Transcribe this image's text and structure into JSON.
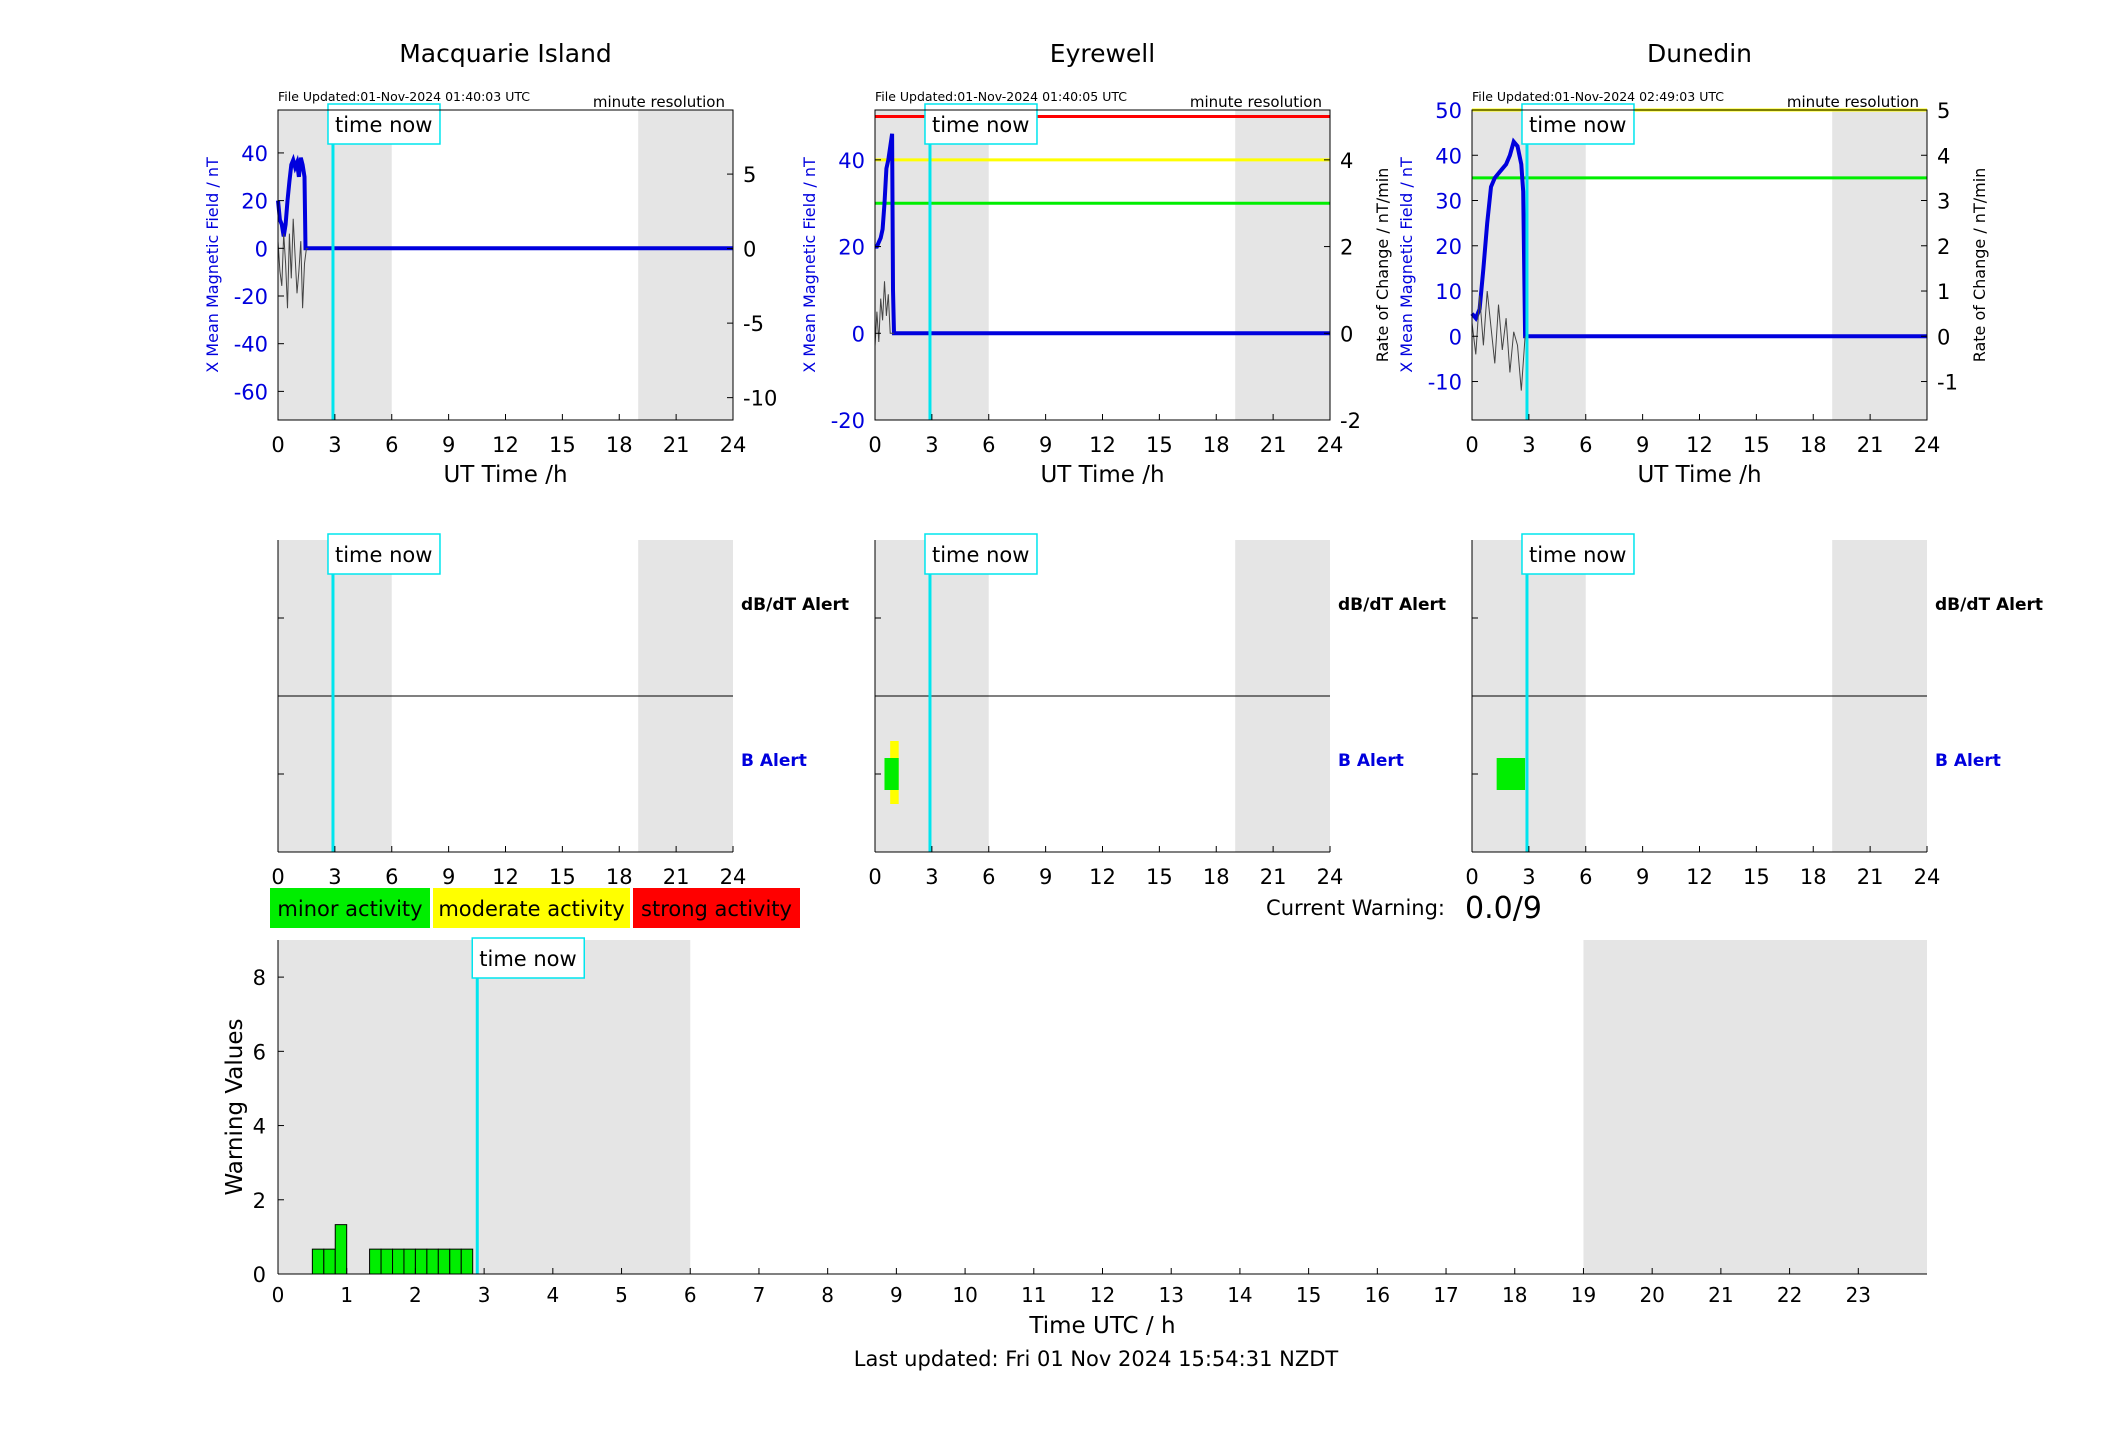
{
  "figure": {
    "last_updated": "Last updated: Fri 01 Nov 2024 15:54:31 NZDT",
    "current_warning_label": "Current Warning:",
    "current_warning_value": "0.0/9",
    "time_now_label": "time now",
    "legend": [
      {
        "label": "minor activity",
        "color": "#00ee00"
      },
      {
        "label": "moderate activity",
        "color": "#ffff00"
      },
      {
        "label": "strong activity",
        "color": "#ff0000"
      }
    ],
    "colors": {
      "field": "#0000dd",
      "rate": "#444444",
      "time_now": "#00e5ee",
      "night_shade": "#e5e5e5"
    }
  },
  "chart_data": [
    {
      "type": "line",
      "title": "Macquarie Island",
      "file_updated": "File Updated:01-Nov-2024 01:40:03 UTC",
      "resolution": "minute resolution",
      "xlabel": "UT Time /h",
      "ylabel": "X Mean Magnetic Field / nT",
      "ylabel_right": "",
      "xlim": [
        0,
        24
      ],
      "xticks": [
        "0",
        "3",
        "6",
        "9",
        "12",
        "15",
        "18",
        "21",
        "24"
      ],
      "ylim": [
        -72,
        58
      ],
      "yticks": [
        "-60",
        "-40",
        "-20",
        "0",
        "20",
        "40"
      ],
      "ylim_right": [
        -11.5,
        9.3
      ],
      "yticks_right": [
        "-10",
        "-5",
        "0",
        "5"
      ],
      "time_now_h": 2.9,
      "shade": [
        [
          0,
          6
        ],
        [
          19,
          24
        ]
      ],
      "thresholds": [],
      "series": [
        {
          "role": "field",
          "x": [
            0,
            0.1,
            0.2,
            0.3,
            0.4,
            0.5,
            0.6,
            0.7,
            0.8,
            0.9,
            1.0,
            1.1,
            1.2,
            1.3,
            1.4,
            1.45,
            1.5,
            2,
            24
          ],
          "y": [
            20,
            12,
            10,
            5,
            10,
            20,
            28,
            35,
            37,
            34,
            36,
            30,
            38,
            35,
            30,
            0,
            0,
            0,
            0
          ]
        },
        {
          "role": "rate",
          "x": [
            0,
            0.1,
            0.2,
            0.3,
            0.4,
            0.5,
            0.6,
            0.7,
            0.8,
            0.9,
            1.0,
            1.1,
            1.2,
            1.3,
            1.4,
            1.5,
            1.6
          ],
          "y": [
            0.5,
            -1.5,
            -2.5,
            1,
            -1,
            -4,
            1,
            -2,
            2,
            -0.5,
            -3,
            -1.5,
            0.5,
            -4,
            -1,
            0,
            0
          ]
        }
      ]
    },
    {
      "type": "line",
      "title": "Eyrewell",
      "file_updated": "File Updated:01-Nov-2024 01:40:05 UTC",
      "resolution": "minute resolution",
      "xlabel": "UT Time /h",
      "ylabel": "X Mean Magnetic Field / nT",
      "ylabel_right": "Rate of Change / nT/min",
      "xlim": [
        0,
        24
      ],
      "xticks": [
        "0",
        "3",
        "6",
        "9",
        "12",
        "15",
        "18",
        "21",
        "24"
      ],
      "ylim": [
        -20,
        51.5
      ],
      "yticks": [
        "-20",
        "0",
        "20",
        "40"
      ],
      "ylim_right": [
        -2,
        5.15
      ],
      "yticks_right": [
        "-2",
        "0",
        "2",
        "4"
      ],
      "time_now_h": 2.9,
      "shade": [
        [
          0,
          6
        ],
        [
          19,
          24
        ]
      ],
      "thresholds": [
        {
          "y": 50,
          "color": "#ff0000"
        },
        {
          "y": 40,
          "color": "#ffff00"
        },
        {
          "y": 30,
          "color": "#00ee00"
        }
      ],
      "series": [
        {
          "role": "field",
          "x": [
            0,
            0.1,
            0.2,
            0.3,
            0.4,
            0.5,
            0.6,
            0.7,
            0.8,
            0.9,
            0.95,
            1.0,
            1.05,
            24
          ],
          "y": [
            20,
            20,
            21,
            22,
            24,
            30,
            38,
            40,
            43,
            46,
            10,
            0,
            0,
            0
          ]
        },
        {
          "role": "rate",
          "x": [
            0,
            0.1,
            0.2,
            0.3,
            0.4,
            0.5,
            0.6,
            0.7,
            0.8,
            0.9,
            1.0
          ],
          "y": [
            -0.3,
            0.5,
            -0.2,
            0.8,
            0.3,
            1.2,
            0.4,
            0.9,
            0,
            0,
            0
          ]
        }
      ]
    },
    {
      "type": "line",
      "title": "Dunedin",
      "file_updated": "File Updated:01-Nov-2024 02:49:03 UTC",
      "resolution": "minute resolution",
      "xlabel": "UT Time /h",
      "ylabel": "X Mean Magnetic Field / nT",
      "ylabel_right": "Rate of Change / nT/min",
      "xlim": [
        0,
        24
      ],
      "xticks": [
        "0",
        "3",
        "6",
        "9",
        "12",
        "15",
        "18",
        "21",
        "24"
      ],
      "ylim": [
        -18.5,
        50
      ],
      "yticks": [
        "-10",
        "0",
        "10",
        "20",
        "30",
        "40",
        "50"
      ],
      "ylim_right": [
        -1.85,
        5
      ],
      "yticks_right": [
        "-1",
        "0",
        "1",
        "2",
        "3",
        "4",
        "5"
      ],
      "time_now_h": 2.9,
      "shade": [
        [
          0,
          6
        ],
        [
          19,
          24
        ]
      ],
      "thresholds": [
        {
          "y": 50,
          "color": "#ffff00"
        },
        {
          "y": 35,
          "color": "#00ee00"
        }
      ],
      "series": [
        {
          "role": "field",
          "x": [
            0,
            0.2,
            0.4,
            0.6,
            0.8,
            1.0,
            1.2,
            1.4,
            1.6,
            1.8,
            2.0,
            2.2,
            2.4,
            2.6,
            2.7,
            2.8,
            2.85,
            24
          ],
          "y": [
            5,
            4,
            6,
            15,
            25,
            33,
            35,
            36,
            37,
            38,
            40,
            43,
            42,
            38,
            32,
            0,
            0,
            0
          ]
        },
        {
          "role": "rate",
          "x": [
            0,
            0.2,
            0.4,
            0.6,
            0.8,
            1.0,
            1.2,
            1.4,
            1.6,
            1.8,
            2.0,
            2.2,
            2.4,
            2.6,
            2.8
          ],
          "y": [
            0.3,
            -0.4,
            0.9,
            -0.2,
            1.0,
            0.2,
            -0.6,
            0.7,
            -0.3,
            0.4,
            -0.8,
            0.1,
            -0.2,
            -1.2,
            0
          ]
        }
      ]
    },
    {
      "type": "heatmap",
      "title": "",
      "rows": [
        "dB/dT Alert",
        "B Alert"
      ],
      "xlim": [
        0,
        24
      ],
      "xticks": [
        "0",
        "3",
        "6",
        "9",
        "12",
        "15",
        "18",
        "21",
        "24"
      ],
      "time_now_h": 2.9,
      "shade": [
        [
          0,
          6
        ],
        [
          19,
          24
        ]
      ],
      "blocks": []
    },
    {
      "type": "heatmap",
      "title": "",
      "rows": [
        "dB/dT Alert",
        "B Alert"
      ],
      "xlim": [
        0,
        24
      ],
      "xticks": [
        "0",
        "3",
        "6",
        "9",
        "12",
        "15",
        "18",
        "21",
        "24"
      ],
      "time_now_h": 2.9,
      "shade": [
        [
          0,
          6
        ],
        [
          19,
          24
        ]
      ],
      "blocks": [
        {
          "row": "B Alert",
          "x0": 0.8,
          "x1": 1.25,
          "level": "moderate"
        },
        {
          "row": "B Alert",
          "x0": 0.5,
          "x1": 1.25,
          "level": "minor"
        }
      ]
    },
    {
      "type": "heatmap",
      "title": "",
      "rows": [
        "dB/dT Alert",
        "B Alert"
      ],
      "xlim": [
        0,
        24
      ],
      "xticks": [
        "0",
        "3",
        "6",
        "9",
        "12",
        "15",
        "18",
        "21",
        "24"
      ],
      "time_now_h": 2.9,
      "shade": [
        [
          0,
          6
        ],
        [
          19,
          24
        ]
      ],
      "blocks": [
        {
          "row": "B Alert",
          "x0": 1.3,
          "x1": 2.8,
          "level": "minor"
        }
      ]
    },
    {
      "type": "bar",
      "title": "",
      "xlabel": "Time UTC / h",
      "ylabel": "Warning Values",
      "xlim": [
        0,
        24
      ],
      "xticks": [
        "0",
        "1",
        "2",
        "3",
        "4",
        "5",
        "6",
        "7",
        "8",
        "9",
        "10",
        "11",
        "12",
        "13",
        "14",
        "15",
        "16",
        "17",
        "18",
        "19",
        "20",
        "21",
        "22",
        "23"
      ],
      "ylim": [
        0,
        9
      ],
      "yticks": [
        "0",
        "2",
        "4",
        "6",
        "8"
      ],
      "time_now_h": 2.9,
      "shade": [
        [
          0,
          6
        ],
        [
          19,
          24
        ]
      ],
      "bar_width_h": 0.1667,
      "x": [
        0.5,
        0.667,
        0.833,
        1.333,
        1.5,
        1.667,
        1.833,
        2.0,
        2.167,
        2.333,
        2.5,
        2.667
      ],
      "values": [
        0.67,
        0.67,
        1.33,
        0.67,
        0.67,
        0.67,
        0.67,
        0.67,
        0.67,
        0.67,
        0.67,
        0.67
      ]
    }
  ]
}
